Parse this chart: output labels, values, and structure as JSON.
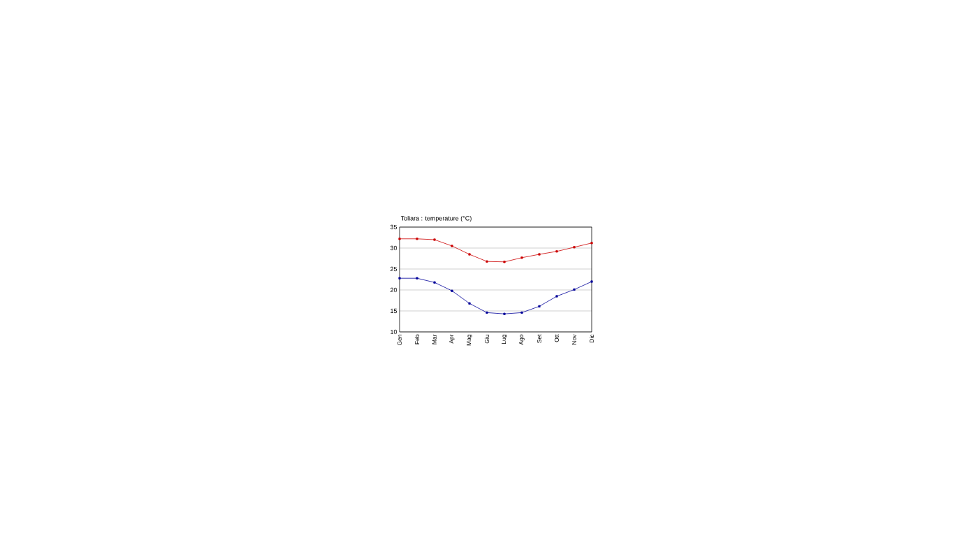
{
  "chart_data": {
    "type": "line",
    "title": "Toliara : temperature (°C)",
    "categories": [
      "Gen",
      "Feb",
      "Mar",
      "Apr",
      "Mag",
      "Giu",
      "Lug",
      "Ago",
      "Set",
      "Ott",
      "Nov",
      "Dic"
    ],
    "series": [
      {
        "color": "#cc0000",
        "values": [
          32.2,
          32.2,
          32.0,
          30.5,
          28.5,
          26.8,
          26.7,
          27.7,
          28.5,
          29.2,
          30.2,
          31.2
        ]
      },
      {
        "color": "#000099",
        "values": [
          22.8,
          22.8,
          21.8,
          19.8,
          16.8,
          14.6,
          14.3,
          14.6,
          16.1,
          18.5,
          20.1,
          22.0
        ]
      }
    ],
    "ylim": [
      10,
      35
    ],
    "yticks": [
      10,
      15,
      20,
      25,
      30,
      35
    ],
    "grid": "y",
    "marker": "square",
    "line_style": "solid"
  }
}
